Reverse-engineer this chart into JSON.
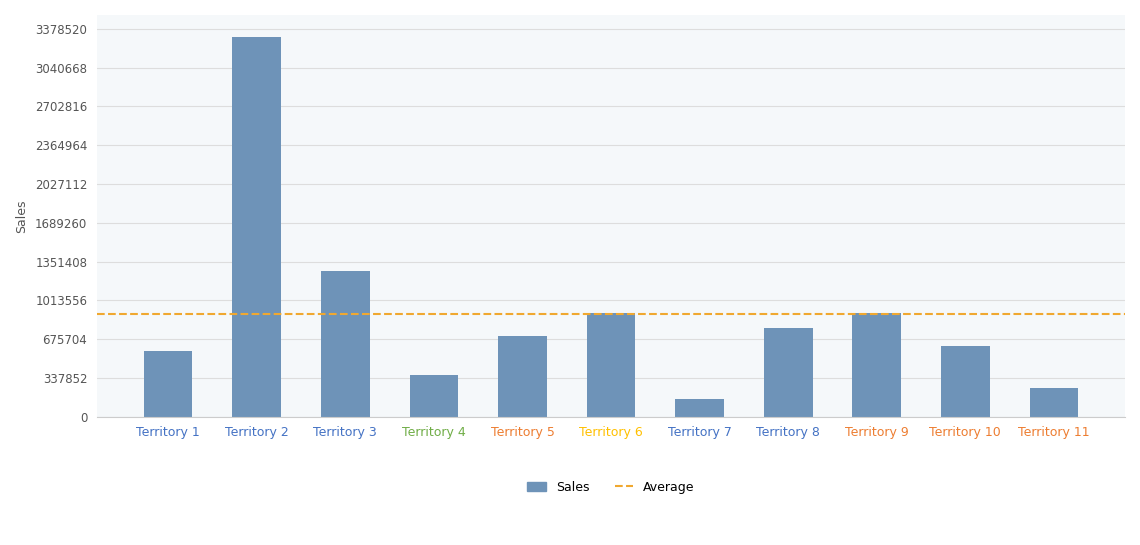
{
  "categories": [
    "Territory 1",
    "Territory 2",
    "Territory 3",
    "Territory 4",
    "Territory 5",
    "Territory 6",
    "Territory 7",
    "Territory 8",
    "Territory 9",
    "Territory 10",
    "Territory 11"
  ],
  "values": [
    575000,
    3310000,
    1270000,
    360000,
    700000,
    900000,
    155000,
    770000,
    905000,
    620000,
    250000
  ],
  "bar_color": "#6e93b8",
  "average_line": 893000,
  "average_color": "#f0a830",
  "ylabel": "Sales",
  "yticks": [
    0,
    337852,
    675704,
    1013556,
    1351408,
    1689260,
    2027112,
    2364964,
    2702816,
    3040668,
    3378520
  ],
  "ylim": [
    0,
    3500000
  ],
  "label_colors": [
    "#4472c4",
    "#4472c4",
    "#4472c4",
    "#70ad47",
    "#ed7d31",
    "#ffc000",
    "#4472c4",
    "#4472c4",
    "#ed7d31",
    "#ed7d31",
    "#ed7d31"
  ],
  "background_color": "#ffffff",
  "grid_color": "#dddddd",
  "chart_area_bg": "#f5f8fa",
  "legend_sales_label": "Sales",
  "legend_avg_label": "Average"
}
